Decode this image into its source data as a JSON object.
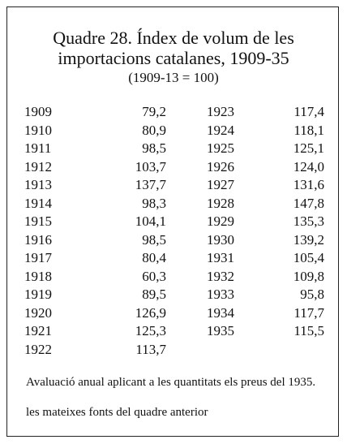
{
  "header": {
    "title_lines": [
      "Quadre 28. Índex de volum de les",
      "importacions catalanes, 1909-35"
    ],
    "subtitle": "(1909-13 = 100)"
  },
  "table": {
    "columns": [
      [
        [
          "1909",
          "79,2"
        ],
        [
          "1910",
          "80,9"
        ],
        [
          "1911",
          "98,5"
        ],
        [
          "1912",
          "103,7"
        ],
        [
          "1913",
          "137,7"
        ],
        [
          "1914",
          "98,3"
        ],
        [
          "1915",
          "104,1"
        ],
        [
          "1916",
          "98,5"
        ],
        [
          "1917",
          "80,4"
        ],
        [
          "1918",
          "60,3"
        ],
        [
          "1919",
          "89,5"
        ],
        [
          "1920",
          "126,9"
        ],
        [
          "1921",
          "125,3"
        ],
        [
          "1922",
          "113,7"
        ]
      ],
      [
        [
          "1923",
          "117,4"
        ],
        [
          "1924",
          "118,1"
        ],
        [
          "1925",
          "125,1"
        ],
        [
          "1926",
          "124,0"
        ],
        [
          "1927",
          "131,6"
        ],
        [
          "1928",
          "147,8"
        ],
        [
          "1929",
          "135,3"
        ],
        [
          "1930",
          "139,2"
        ],
        [
          "1931",
          "105,4"
        ],
        [
          "1932",
          "109,8"
        ],
        [
          "1933",
          "95,8"
        ],
        [
          "1934",
          "117,7"
        ],
        [
          "1935",
          "115,5"
        ]
      ]
    ]
  },
  "footer": {
    "notes": [
      "Avaluació anual aplicant a les quantitats els preus del 1935.",
      "les mateixes fonts del quadre anterior"
    ]
  }
}
